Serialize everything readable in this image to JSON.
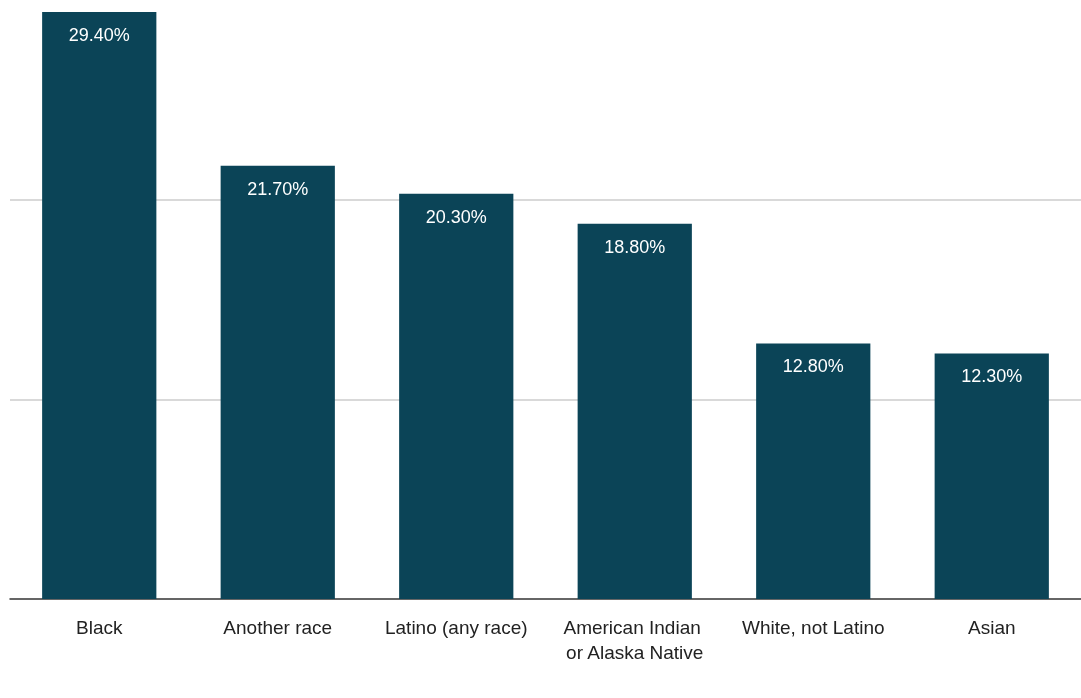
{
  "chart_data": {
    "type": "bar",
    "categories": [
      "Black",
      "Another race",
      "Latino (any race)",
      "American Indian or Alaska Native",
      "White, not Latino",
      "Asian"
    ],
    "values": [
      29.4,
      21.7,
      20.3,
      18.8,
      12.8,
      12.3
    ],
    "value_labels": [
      "29.40%",
      "21.70%",
      "20.30%",
      "18.80%",
      "12.80%",
      "12.30%"
    ],
    "color": "#0b4457",
    "ref_lines": [
      {
        "axis": "y",
        "value": 10,
        "color": "#cccccc"
      },
      {
        "axis": "y",
        "value": 20,
        "color": "#cccccc"
      }
    ],
    "tick_labels": "x"
  }
}
